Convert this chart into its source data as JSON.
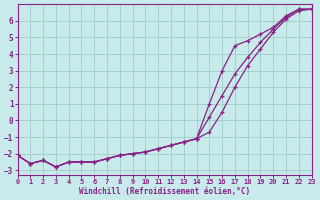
{
  "xlabel": "Windchill (Refroidissement éolien,°C)",
  "background_color": "#c8eaea",
  "grid_color": "#a0cccc",
  "line_color": "#882288",
  "xlim": [
    0,
    23
  ],
  "ylim": [
    -3.3,
    7.0
  ],
  "xticks": [
    0,
    1,
    2,
    3,
    4,
    5,
    6,
    7,
    8,
    9,
    10,
    11,
    12,
    13,
    14,
    15,
    16,
    17,
    18,
    19,
    20,
    21,
    22,
    23
  ],
  "yticks": [
    -3,
    -2,
    -1,
    0,
    1,
    2,
    3,
    4,
    5,
    6
  ],
  "line1_x": [
    0,
    1,
    2,
    3,
    4,
    5,
    6,
    7,
    8,
    9,
    10,
    11,
    12,
    13,
    14,
    15,
    16,
    17,
    18,
    19,
    20,
    21,
    22,
    23
  ],
  "line1_y": [
    -2.1,
    -2.6,
    -2.4,
    -2.8,
    -2.5,
    -2.5,
    -2.5,
    -2.3,
    -2.1,
    -2.0,
    -1.9,
    -1.7,
    -1.5,
    -1.3,
    -1.1,
    -0.7,
    0.5,
    2.0,
    3.3,
    4.3,
    5.3,
    6.1,
    6.6,
    6.7
  ],
  "line2_x": [
    0,
    1,
    2,
    3,
    4,
    5,
    6,
    7,
    8,
    9,
    10,
    11,
    12,
    13,
    14,
    15,
    16,
    17,
    18,
    19,
    20,
    21,
    22,
    23
  ],
  "line2_y": [
    -2.1,
    -2.6,
    -2.4,
    -2.8,
    -2.5,
    -2.5,
    -2.5,
    -2.3,
    -2.1,
    -2.0,
    -1.9,
    -1.7,
    -1.5,
    -1.3,
    -1.1,
    0.2,
    1.5,
    2.8,
    3.8,
    4.7,
    5.5,
    6.2,
    6.7,
    6.7
  ],
  "line3_x": [
    0,
    1,
    2,
    3,
    4,
    5,
    6,
    7,
    8,
    9,
    10,
    11,
    12,
    13,
    14,
    15,
    16,
    17,
    18,
    19,
    20,
    21,
    22,
    23
  ],
  "line3_y": [
    -2.1,
    -2.6,
    -2.4,
    -2.8,
    -2.5,
    -2.5,
    -2.5,
    -2.3,
    -2.1,
    -2.0,
    -1.9,
    -1.7,
    -1.5,
    -1.3,
    -1.1,
    1.0,
    3.0,
    4.5,
    4.8,
    5.2,
    5.6,
    6.3,
    6.7,
    6.7
  ]
}
